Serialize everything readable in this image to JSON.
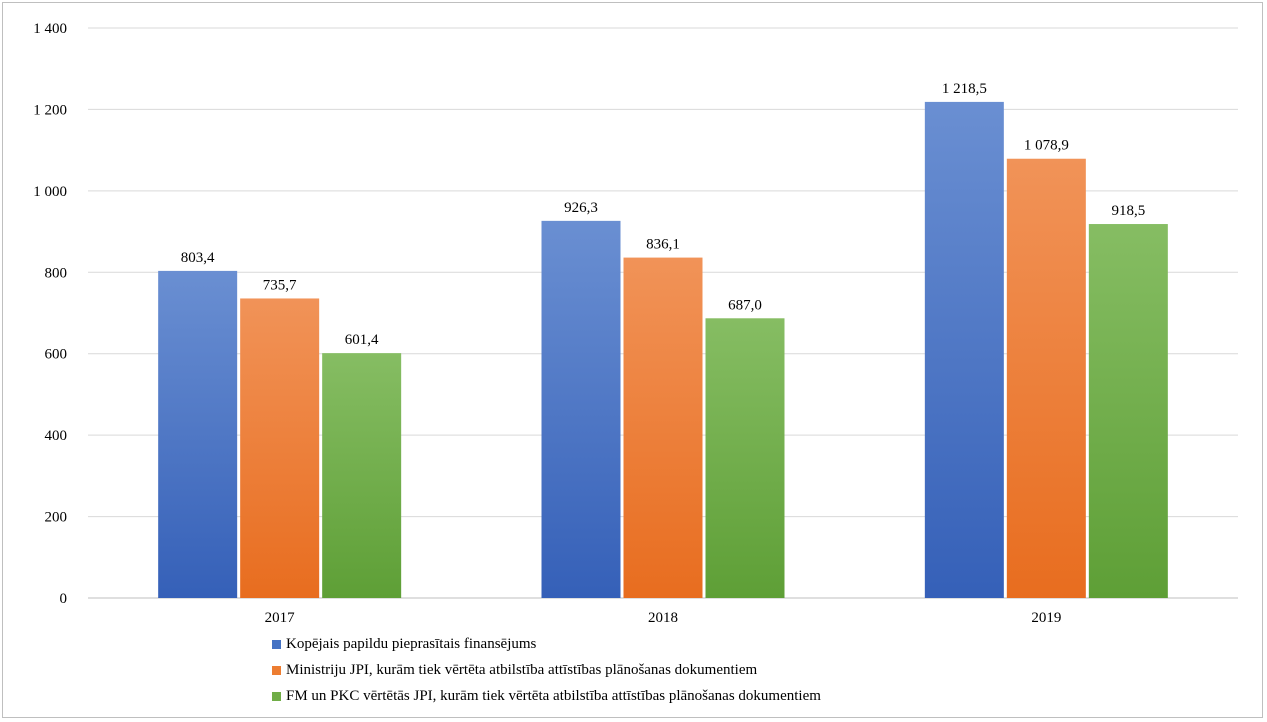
{
  "chart_data": {
    "type": "bar",
    "title": "",
    "xlabel": "",
    "ylabel": "",
    "categories": [
      "2017",
      "2018",
      "2019"
    ],
    "ylim": [
      0,
      1400
    ],
    "ytick_values": [
      0,
      200,
      400,
      600,
      800,
      1000,
      1200,
      1400
    ],
    "ytick_labels": [
      "0",
      "200",
      "400",
      "600",
      "800",
      "1 000",
      "1 200",
      "1 400"
    ],
    "grid": true,
    "legend_position": "bottom",
    "series": [
      {
        "name": "Kopējais papildu pieprasītais finansējums",
        "values": [
          803.4,
          926.3,
          1218.5
        ],
        "labels": [
          "803,4",
          "926,3",
          "1 218,5"
        ],
        "color": "#4472c4",
        "color_light": "#6a8fd2",
        "color_dark": "#3560b8"
      },
      {
        "name": "Ministriju JPI, kurām tiek vērtēta atbilstība attīstības plānošanas dokumentiem",
        "values": [
          735.7,
          836.1,
          1078.9
        ],
        "labels": [
          "735,7",
          "836,1",
          "1 078,9"
        ],
        "color": "#ed7d31",
        "color_light": "#f19358",
        "color_dark": "#e86d1f"
      },
      {
        "name": "FM un PKC vērtētās JPI, kurām tiek vērtēta atbilstība attīstības plānošanas dokumentiem",
        "values": [
          601.4,
          687.0,
          918.5
        ],
        "labels": [
          "601,4",
          "687,0",
          "918,5"
        ],
        "color": "#70ad47",
        "color_light": "#86bd63",
        "color_dark": "#5e9f36"
      }
    ]
  }
}
